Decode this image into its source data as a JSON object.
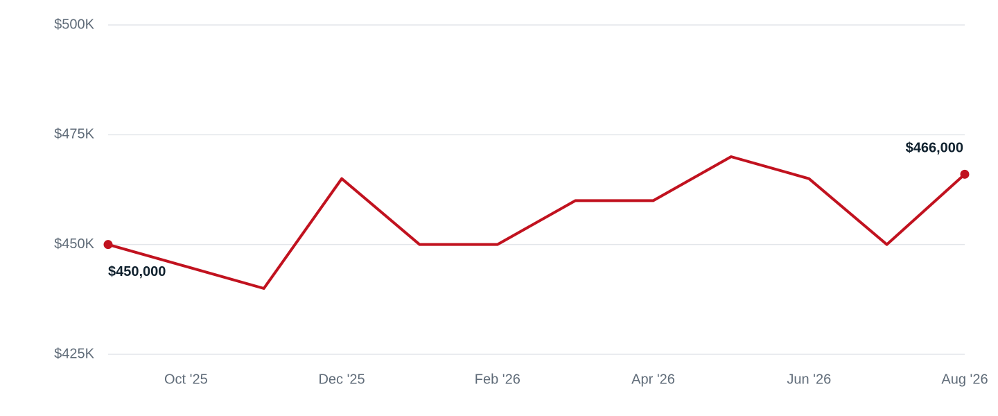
{
  "chart_data": {
    "type": "line",
    "categories": [
      null,
      "Oct '25",
      null,
      "Dec '25",
      null,
      "Feb '26",
      null,
      "Apr '26",
      null,
      "Jun '26",
      null,
      "Aug '26"
    ],
    "values": [
      450000,
      445000,
      440000,
      465000,
      450000,
      450000,
      460000,
      460000,
      470000,
      465000,
      450000,
      466000
    ],
    "value_labels": [
      "$450,000",
      null,
      null,
      null,
      null,
      null,
      null,
      null,
      null,
      null,
      null,
      "$466,000"
    ],
    "color": "#c1121f",
    "ylim": [
      425000,
      500000
    ],
    "yticks": [
      {
        "value": 425000,
        "label": "$425K"
      },
      {
        "value": 450000,
        "label": "$450K"
      },
      {
        "value": 475000,
        "label": "$475K"
      },
      {
        "value": 500000,
        "label": "$500K"
      }
    ],
    "grid": true
  }
}
